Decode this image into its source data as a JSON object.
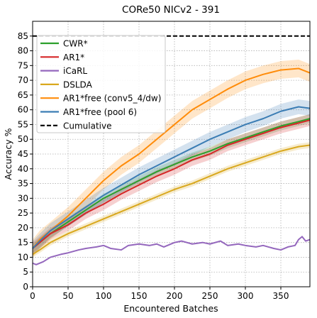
{
  "chart_data": {
    "type": "line",
    "title": "CORe50 NICv2 - 391",
    "xlabel": "Encountered Batches",
    "ylabel": "Accuracy %",
    "xlim": [
      0,
      391
    ],
    "ylim": [
      0,
      90
    ],
    "xticks": [
      0,
      50,
      100,
      150,
      200,
      250,
      300,
      350
    ],
    "yticks": [
      0,
      5,
      10,
      15,
      20,
      25,
      30,
      35,
      40,
      45,
      50,
      55,
      60,
      65,
      70,
      75,
      80,
      85
    ],
    "grid": true,
    "legend_position": "upper-left",
    "series": [
      {
        "name": "CWR*",
        "color": "#2ca02c",
        "style": "solid",
        "x": [
          0,
          10,
          25,
          50,
          75,
          100,
          125,
          150,
          175,
          200,
          225,
          250,
          275,
          300,
          325,
          350,
          375,
          391
        ],
        "y": [
          13,
          15,
          18,
          22,
          26,
          30,
          33,
          36,
          39,
          41.5,
          44,
          46,
          48.5,
          50.5,
          52.5,
          54.5,
          56,
          57
        ],
        "band": 1.5
      },
      {
        "name": "AR1*",
        "color": "#d62728",
        "style": "solid",
        "x": [
          0,
          10,
          25,
          50,
          75,
          100,
          125,
          150,
          175,
          200,
          225,
          250,
          275,
          300,
          325,
          350,
          375,
          391
        ],
        "y": [
          13,
          15,
          18,
          21,
          25,
          28,
          31.5,
          34.5,
          37.5,
          40,
          43,
          45,
          48,
          50,
          52,
          54,
          55.5,
          56.5
        ],
        "band": 2
      },
      {
        "name": "iCaRL",
        "color": "#9467bd",
        "style": "solid",
        "x": [
          0,
          5,
          15,
          25,
          40,
          50,
          65,
          75,
          90,
          100,
          110,
          125,
          135,
          150,
          165,
          175,
          185,
          200,
          210,
          225,
          240,
          250,
          265,
          275,
          290,
          300,
          315,
          325,
          340,
          350,
          360,
          370,
          375,
          380,
          385,
          391
        ],
        "y": [
          8,
          7.5,
          8.5,
          10,
          11,
          11.5,
          12.5,
          13,
          13.5,
          14,
          13,
          12.5,
          14,
          14.5,
          14,
          14.5,
          13.5,
          15,
          15.5,
          14.5,
          15,
          14.5,
          15.5,
          14,
          14.5,
          14,
          13.5,
          14,
          13,
          12.5,
          13.5,
          14,
          16,
          17,
          15.5,
          16
        ]
      },
      {
        "name": "DSLDA",
        "color": "#d9a81e",
        "style": "solid",
        "x": [
          0,
          10,
          25,
          50,
          75,
          100,
          125,
          150,
          175,
          200,
          225,
          250,
          275,
          300,
          325,
          350,
          375,
          391
        ],
        "y": [
          11,
          12.5,
          15,
          18,
          20.5,
          23,
          25.5,
          28,
          30.5,
          33,
          35,
          37.5,
          40,
          42,
          44,
          46,
          47.5,
          48
        ],
        "band": 1
      },
      {
        "name": "AR1*free (conv5_4/dw)",
        "color": "#ff8c0a",
        "style": "solid",
        "x": [
          0,
          10,
          25,
          50,
          75,
          100,
          125,
          150,
          175,
          200,
          225,
          250,
          275,
          300,
          325,
          350,
          375,
          391
        ],
        "y": [
          13,
          16,
          19,
          24,
          30,
          36,
          41,
          45,
          50,
          55,
          60,
          63.5,
          67,
          70,
          72,
          73.5,
          74,
          72.5
        ],
        "band": 3
      },
      {
        "name": "AR1*free (pool 6)",
        "color": "#3b7db4",
        "style": "solid",
        "x": [
          0,
          10,
          25,
          50,
          75,
          100,
          125,
          150,
          175,
          200,
          225,
          250,
          275,
          300,
          325,
          350,
          375,
          391
        ],
        "y": [
          13,
          15.5,
          19,
          23,
          27,
          31,
          34.5,
          38,
          41,
          44,
          47,
          50,
          52.5,
          55,
          57,
          59.5,
          61,
          60.5
        ],
        "band": 2.5
      },
      {
        "name": "Cumulative",
        "color": "#000000",
        "style": "dashed",
        "x": [
          0,
          391
        ],
        "y": [
          85,
          85
        ]
      }
    ]
  }
}
